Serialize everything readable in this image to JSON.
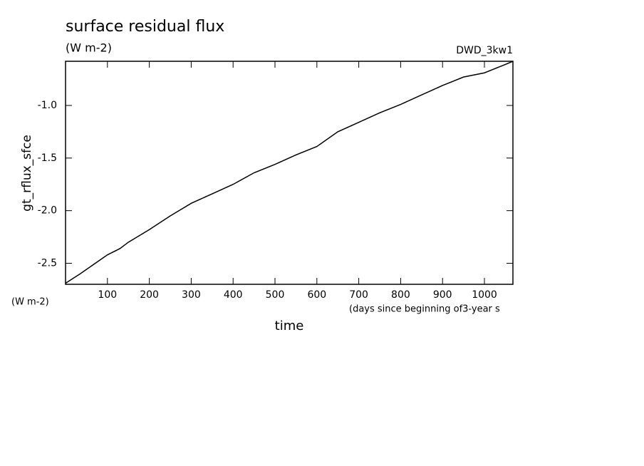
{
  "chart_data": {
    "type": "line",
    "title": "surface residual flux",
    "subtitle": "(W m-2)",
    "dataset_label": "DWD_3kw1",
    "ylabel": "gt_rflux_sfce",
    "y_units": "(W m-2)",
    "x_units": "(days since beginning of3-year s",
    "xlabel": "time",
    "x": [
      0,
      35,
      100,
      130,
      150,
      200,
      250,
      300,
      350,
      400,
      450,
      500,
      550,
      600,
      650,
      700,
      750,
      800,
      850,
      900,
      950,
      1000,
      1050,
      1068
    ],
    "series": [
      {
        "color": "#000000",
        "values": [
          -2.69,
          -2.6,
          -2.42,
          -2.36,
          -2.3,
          -2.18,
          -2.05,
          -1.93,
          -1.84,
          -1.75,
          -1.64,
          -1.56,
          -1.47,
          -1.39,
          -1.25,
          -1.16,
          -1.07,
          -0.99,
          -0.9,
          -0.81,
          -0.73,
          -0.69,
          -0.61,
          -0.58
        ]
      }
    ],
    "xlim": [
      0,
      1068
    ],
    "ylim": [
      -2.7,
      -0.58
    ],
    "xticks": [
      100,
      200,
      300,
      400,
      500,
      600,
      700,
      800,
      900,
      1000
    ],
    "yticks": [
      {
        "value": -2.5,
        "label": "-2.5"
      },
      {
        "value": -2,
        "label": "-2.0"
      },
      {
        "value": -1.5,
        "label": "-1.5"
      },
      {
        "value": -1,
        "label": "-1.0"
      }
    ]
  }
}
